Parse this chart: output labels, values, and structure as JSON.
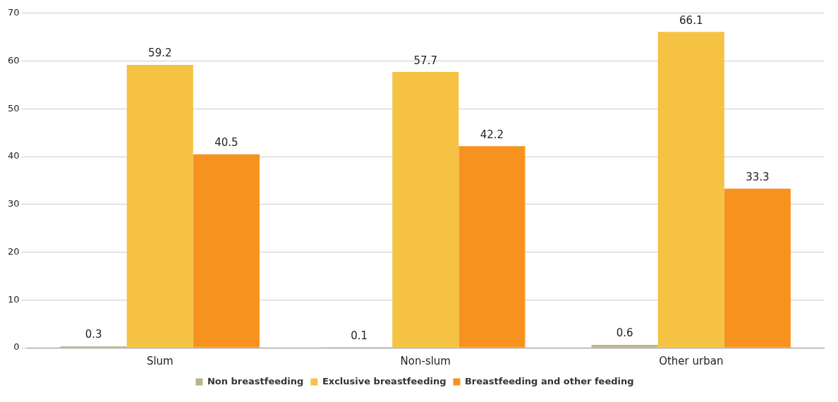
{
  "chart_data": {
    "type": "bar",
    "categories": [
      "Slum",
      "Non-slum",
      "Other urban"
    ],
    "series": [
      {
        "name": "Non breastfeeding",
        "color": "#b9b48e",
        "values": [
          0.3,
          0.1,
          0.6
        ]
      },
      {
        "name": "Exclusive breastfeeding",
        "color": "#f6c244",
        "values": [
          59.2,
          57.7,
          66.1
        ]
      },
      {
        "name": "Breastfeeding and other feeding",
        "color": "#f7921f",
        "values": [
          40.5,
          42.2,
          33.3
        ]
      }
    ],
    "ylim": [
      0,
      70
    ],
    "yticks": [
      0,
      10,
      20,
      30,
      40,
      50,
      60,
      70
    ],
    "grid": "y",
    "legend": "bottom",
    "data_labels": true
  }
}
